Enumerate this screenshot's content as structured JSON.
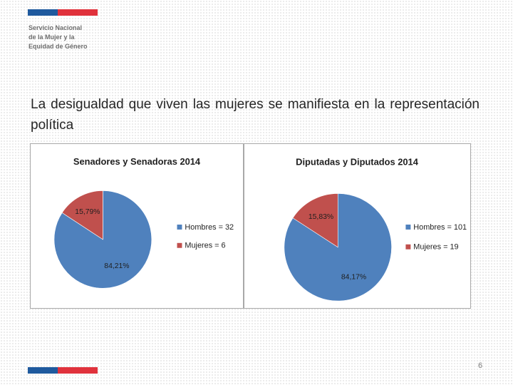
{
  "org": {
    "lines": [
      "Servicio Nacional",
      "de la Mujer y la",
      "Equidad de Género"
    ]
  },
  "headline": "La desigualdad que viven las mujeres se manifiesta en la representación política",
  "slide_number": "6",
  "colors": {
    "flag_blue": "#1f5a9e",
    "flag_red": "#e0323c",
    "hombres": "#4f81bd",
    "mujeres": "#c0504d"
  },
  "chart_data": [
    {
      "type": "pie",
      "title": "Senadores y Senadoras 2014",
      "categories": [
        "Hombres = 32",
        "Mujeres = 6"
      ],
      "values": [
        32,
        6
      ],
      "percent_labels": [
        "84,21%",
        "15,79%"
      ],
      "legend": "right"
    },
    {
      "type": "pie",
      "title": "Diputadas y Diputados 2014",
      "categories": [
        "Hombres = 101",
        "Mujeres = 19"
      ],
      "values": [
        101,
        19
      ],
      "percent_labels": [
        "84,17%",
        "15,83%"
      ],
      "legend": "right"
    }
  ]
}
